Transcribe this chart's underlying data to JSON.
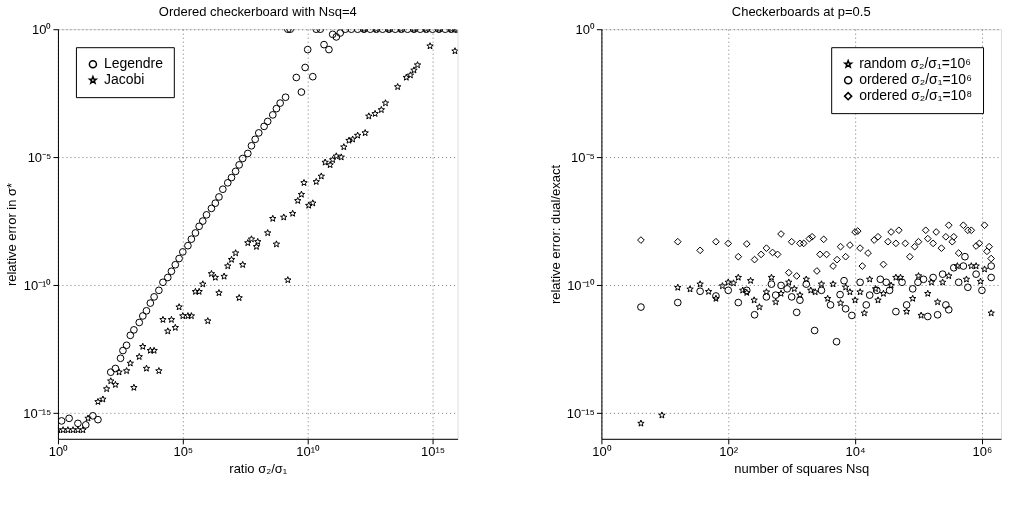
{
  "chart_data": [
    {
      "type": "scatter",
      "title": "Ordered checkerboard with Nsq=4",
      "xlabel": "ratio σ₂/σ₁",
      "ylabel": "relative error in σ*",
      "log": "xy",
      "grid": true,
      "legend": "top left",
      "xlim": [
        1,
        1e+16
      ],
      "ylim": [
        1e-16,
        1
      ],
      "xticks": [
        {
          "value": 1,
          "label": "10⁰"
        },
        {
          "value": 100000.0,
          "label": "10⁵"
        },
        {
          "value": 10000000000.0,
          "label": "10¹⁰"
        },
        {
          "value": 1000000000000000.0,
          "label": "10¹⁵"
        }
      ],
      "yticks": [
        {
          "value": 1e-15,
          "label": "10⁻¹⁵"
        },
        {
          "value": 1e-10,
          "label": "10⁻¹⁰"
        },
        {
          "value": 1e-05,
          "label": "10⁻⁵"
        },
        {
          "value": 1,
          "label": "10⁰"
        }
      ],
      "series": [
        {
          "name": "Legendre",
          "color": "#000000",
          "marker": "circle",
          "x": [
            1.4,
            2.8,
            6.3,
            13,
            25,
            40,
            130,
            200,
            320,
            400,
            560,
            790,
            1100,
            1800,
            2500,
            3500,
            5000,
            7100,
            11000,
            16000,
            25000,
            35000,
            50000,
            71000,
            100000.0,
            160000.0,
            220000.0,
            320000.0,
            450000.0,
            630000.0,
            890000.0,
            1400000.0,
            2000000.0,
            2800000.0,
            4000000.0,
            6300000.0,
            8900000.0,
            13000000.0,
            18000000.0,
            25000000.0,
            40000000.0,
            56000000.0,
            79000000.0,
            110000000.0,
            180000000.0,
            250000000.0,
            400000000.0,
            560000000.0,
            790000000.0,
            1300000000.0,
            1600000000.0,
            2000000000.0,
            3500000000.0,
            5600000000.0,
            7900000000.0,
            10000000000.0,
            16000000000.0,
            22000000000.0,
            32000000000.0,
            45000000000.0,
            71000000000.0,
            100000000000.0,
            140000000000.0,
            200000000000.0,
            320000000000.0,
            560000000000.0,
            1000000000000.0,
            1800000000000.0,
            3200000000000.0,
            5600000000000.0,
            10000000000000.0,
            18000000000000.0,
            32000000000000.0,
            56000000000000.0,
            100000000000000.0,
            180000000000000.0,
            320000000000000.0,
            560000000000000.0,
            1000000000000000.0,
            1800000000000000.0,
            3200000000000000.0,
            5600000000000000.0,
            8900000000000000.0
          ],
          "values": [
            5e-16,
            6.3e-16,
            4e-16,
            3.5e-16,
            7.9e-16,
            5.6e-16,
            4e-14,
            5.6e-14,
            1.4e-13,
            2.8e-13,
            4.5e-13,
            1.1e-12,
            1.8e-12,
            3.5e-12,
            6.3e-12,
            1e-11,
            2e-11,
            3.5e-11,
            6.3e-11,
            1.3e-10,
            2e-10,
            3.5e-10,
            6.3e-10,
            1.1e-09,
            2e-09,
            3.5e-09,
            6.3e-09,
            1.1e-08,
            2e-08,
            3.2e-08,
            5.6e-08,
            1e-07,
            1.6e-07,
            2.8e-07,
            5.6e-07,
            1e-06,
            1.6e-06,
            2.8e-06,
            5e-06,
            8.9e-06,
            1.4e-05,
            2.8e-05,
            5e-05,
            8.9e-05,
            0.00016,
            0.00025,
            0.00045,
            0.00079,
            0.0013,
            0.0022,
            1,
            1,
            0.013,
            0.0035,
            0.032,
            0.16,
            0.014,
            1,
            1,
            0.25,
            0.16,
            0.63,
            0.5,
            0.71,
            1,
            1,
            1,
            1,
            1,
            1,
            1,
            1,
            1,
            1,
            1,
            1,
            1,
            1,
            1,
            1,
            1,
            1,
            1
          ]
        },
        {
          "name": "Jacobi",
          "color": "#000000",
          "marker": "star",
          "x": [
            1,
            1.6,
            2.5,
            4,
            6.3,
            10,
            16,
            40,
            63,
            89,
            130,
            200,
            280,
            560,
            790,
            1100,
            1800,
            2500,
            3500,
            5000,
            7100,
            11000,
            16000,
            25000,
            35000,
            50000,
            71000,
            100000.0,
            160000.0,
            220000.0,
            320000.0,
            450000.0,
            630000.0,
            1000000.0,
            1400000.0,
            2000000.0,
            2800000.0,
            4500000.0,
            6300000.0,
            8900000.0,
            13000000.0,
            18000000.0,
            25000000.0,
            40000000.0,
            56000000.0,
            89000000.0,
            100000000.0,
            250000000.0,
            400000000.0,
            560000000.0,
            1100000000.0,
            1600000000.0,
            2500000000.0,
            4000000000.0,
            5600000000.0,
            7100000000.0,
            11000000000.0,
            16000000000.0,
            22000000000.0,
            35000000000.0,
            50000000000.0,
            79000000000.0,
            100000000000.0,
            140000000000.0,
            220000000000.0,
            280000000000.0,
            450000000000.0,
            630000000000.0,
            1000000000000.0,
            2000000000000.0,
            2800000000000.0,
            5000000000000.0,
            8900000000000.0,
            13000000000000.0,
            40000000000000.0,
            89000000000000.0,
            130000000000000.0,
            180000000000000.0,
            250000000000000.0,
            790000000000000.0,
            7900000000000000.0,
            1800000000000.0,
            5600000000000.0,
            18000000000000.0,
            56000000000000.0,
            180000000000000.0,
            560000000000000.0,
            1800000000000000.0,
            5600000000000000.0,
            1e+16
          ],
          "values": [
            2.2e-16,
            2.2e-16,
            2.2e-16,
            2.2e-16,
            2.2e-16,
            2.2e-16,
            6.3e-16,
            2.8e-15,
            3.5e-15,
            8.9e-15,
            1.8e-14,
            1.3e-14,
            4e-14,
            4.5e-14,
            8.9e-14,
            1e-14,
            1.6e-13,
            4e-13,
            5.6e-14,
            2.8e-13,
            2.8e-13,
            4.5e-14,
            4.5e-12,
            1.6e-12,
            4.5e-12,
            2.2e-12,
            1.4e-11,
            6.3e-12,
            6.3e-12,
            6.3e-12,
            5.6e-11,
            5.6e-11,
            1.1e-10,
            4e-12,
            2.8e-10,
            2e-10,
            5e-11,
            2.2e-10,
            5.6e-10,
            1e-09,
            1.8e-09,
            3.2e-11,
            6.3e-10,
            4.5e-09,
            6.3e-09,
            3.2e-09,
            5e-09,
            1.1e-08,
            4e-08,
            4e-09,
            4.5e-08,
            1.6e-10,
            6.3e-08,
            2e-07,
            3.5e-07,
            1e-06,
            1.3e-07,
            1.6e-07,
            1.1e-06,
            1.8e-06,
            6.3e-06,
            5e-06,
            7.9e-06,
            1.1e-05,
            1e-05,
            2.5e-05,
            4.5e-05,
            5e-05,
            7.1e-05,
            8.9e-05,
            0.0004,
            0.0005,
            0.00071,
            0.0013,
            0.0056,
            0.013,
            0.016,
            0.025,
            0.04,
            0.22,
            0.14,
            1,
            1,
            1,
            1,
            1,
            1,
            1,
            1,
            1
          ]
        }
      ]
    },
    {
      "type": "scatter",
      "title": "Checkerboards at p=0.5",
      "xlabel": "number of squares Nsq",
      "ylabel": "relative error: dual/exact",
      "log": "xy",
      "grid": true,
      "legend": "top right",
      "xlim": [
        1,
        2000000.0
      ],
      "ylim": [
        1e-16,
        1
      ],
      "xticks": [
        {
          "value": 1,
          "label": "10⁰"
        },
        {
          "value": 100,
          "label": "10²"
        },
        {
          "value": 10000,
          "label": "10⁴"
        },
        {
          "value": 1000000.0,
          "label": "10⁶"
        }
      ],
      "yticks": [
        {
          "value": 1e-15,
          "label": "10⁻¹⁵"
        },
        {
          "value": 1e-10,
          "label": "10⁻¹⁰"
        },
        {
          "value": 1e-05,
          "label": "10⁻⁵"
        },
        {
          "value": 1,
          "label": "10⁰"
        }
      ],
      "series": [
        {
          "name": "random σ₂/σ₁=10⁶",
          "color": "#000000",
          "marker": "star",
          "x": [
            4.2,
            9,
            16,
            25,
            36,
            49,
            64,
            81,
            100,
            121,
            144,
            169,
            196,
            225,
            256,
            310,
            400,
            480,
            560,
            680,
            900,
            1100,
            1350,
            1700,
            2000,
            2350,
            2950,
            3700,
            4500,
            5900,
            7100,
            8300,
            10000,
            12000,
            14000,
            17000,
            21000,
            23000,
            28000,
            37000,
            44000,
            52000,
            65000,
            81000,
            100000.0,
            110000.0,
            140000.0,
            160000.0,
            200000.0,
            240000.0,
            300000.0,
            410000.0,
            570000.0,
            680000.0,
            810000.0,
            950000.0,
            1100000.0,
            1400000.0
          ],
          "values": [
            4e-16,
            8.3e-16,
            8.1e-11,
            7e-11,
            1.1e-10,
            5.6e-11,
            3e-11,
            9.3e-11,
            1.3e-10,
            1.2e-10,
            2e-10,
            6.3e-11,
            5.1e-11,
            1.5e-10,
            2.6e-11,
            1.4e-11,
            5.4e-11,
            2e-10,
            2.2e-11,
            4.7e-11,
            1.3e-10,
            7.2e-11,
            4.1e-11,
            1.7e-10,
            6.3e-11,
            5.4e-11,
            1.1e-10,
            3e-11,
            1.1e-10,
            2e-11,
            8.3e-11,
            5.4e-11,
            2.6e-11,
            5.4e-11,
            8.1e-12,
            1.7e-10,
            7.2e-11,
            2.6e-11,
            4.7e-11,
            9.8e-11,
            2e-10,
            2e-10,
            9.3e-12,
            3e-11,
            2.3e-10,
            6.6e-12,
            4.7e-11,
            1.3e-10,
            2.2e-11,
            1.3e-10,
            2.3e-10,
            5.6e-10,
            1.7e-10,
            5.6e-10,
            5.6e-10,
            1.4e-10,
            4.2e-10,
            8.1e-12
          ]
        },
        {
          "name": "ordered σ₂/σ₁=10⁶",
          "color": "#000000",
          "marker": "circle",
          "x": [
            4.2,
            16,
            36,
            64,
            100,
            144,
            196,
            260,
            400,
            480,
            560,
            680,
            850,
            1000,
            1200,
            1350,
            1700,
            2300,
            2950,
            4100,
            5100,
            5800,
            6700,
            7100,
            8900,
            12000,
            15000,
            17000,
            22000,
            25000,
            31000,
            35000,
            44000,
            55000,
            65000,
            81000,
            98000,
            120000.0,
            140000.0,
            170000.0,
            200000.0,
            240000.0,
            270000.0,
            300000.0,
            360000.0,
            430000.0,
            510000.0,
            540000.0,
            600000.0,
            810000.0,
            1000000.0,
            1400000.0,
            1400000.0
          ],
          "values": [
            1.4e-11,
            2.1e-11,
            5.8e-11,
            3.8e-11,
            6.3e-11,
            2.1e-11,
            6.3e-11,
            7e-12,
            3.5e-11,
            1.1e-10,
            4.1e-11,
            9.8e-11,
            7.2e-11,
            3.5e-11,
            8.7e-12,
            2.6e-11,
            1.1e-10,
            1.7e-12,
            6.3e-11,
            1.7e-11,
            6.2e-13,
            4.3e-11,
            1.5e-10,
            1.2e-11,
            6.6e-12,
            1.3e-10,
            1.7e-11,
            4.1e-11,
            6.3e-11,
            1.7e-10,
            1.3e-10,
            6.3e-11,
            9.3e-12,
            1.3e-10,
            1.7e-11,
            7.2e-11,
            1.3e-10,
            1.7e-10,
            6e-12,
            2e-10,
            7e-12,
            2.7e-10,
            1.7e-11,
            1.1e-11,
            4.8e-10,
            1.3e-10,
            5.6e-10,
            1.3e-09,
            8.3e-11,
            2.7e-10,
            6.3e-11,
            5.6e-10,
            2e-10
          ]
        },
        {
          "name": "ordered σ₂/σ₁=10⁸",
          "color": "#000000",
          "marker": "diamond",
          "x": [
            4.2,
            16,
            36,
            64,
            100,
            144,
            196,
            260,
            330,
            400,
            500,
            600,
            680,
            900,
            1000,
            1200,
            1350,
            1550,
            1900,
            2100,
            2500,
            2800,
            3200,
            3550,
            4500,
            5200,
            5900,
            7100,
            8300,
            10000,
            11000,
            12000,
            13000,
            16000,
            20000,
            23000,
            28000,
            33000,
            37000,
            44000,
            49000,
            62000,
            73000,
            87000,
            100000.0,
            130000.0,
            140000.0,
            170000.0,
            190000.0,
            230000.0,
            270000.0,
            300000.0,
            340000.0,
            360000.0,
            430000.0,
            510000.0,
            600000.0,
            680000.0,
            810000.0,
            910000.0,
            1100000.0,
            1200000.0,
            1300000.0,
            1400000.0
          ],
          "values": [
            5.8e-09,
            5e-09,
            2.3e-09,
            5e-09,
            4.3e-09,
            1.3e-09,
            4.1e-09,
            1e-09,
            1.6e-09,
            2.8e-09,
            1.9e-09,
            1.6e-09,
            1e-08,
            3.1e-10,
            5e-09,
            2.3e-10,
            4.3e-09,
            4.3e-09,
            6.6e-09,
            7.8e-09,
            3.6e-10,
            1.6e-09,
            6.2e-09,
            1.6e-09,
            5.6e-10,
            1e-09,
            3.2e-09,
            1.3e-09,
            3.7e-09,
            1.2e-08,
            1.3e-08,
            2.8e-09,
            5.6e-10,
            1.8e-09,
            5.8e-09,
            7.8e-09,
            6.5e-10,
            5e-09,
            1.2e-08,
            4.3e-09,
            1.4e-08,
            4.3e-09,
            1.3e-09,
            3.2e-09,
            5e-09,
            1.4e-08,
            6.6e-09,
            4.3e-09,
            1.2e-08,
            2.8e-09,
            7.8e-09,
            2.2e-08,
            5e-09,
            7.8e-09,
            1.8e-09,
            2.2e-08,
            1.4e-08,
            1.4e-08,
            3.4e-09,
            4.3e-09,
            2.2e-08,
            2.1e-09,
            3.2e-09,
            1.1e-09
          ]
        }
      ]
    }
  ]
}
